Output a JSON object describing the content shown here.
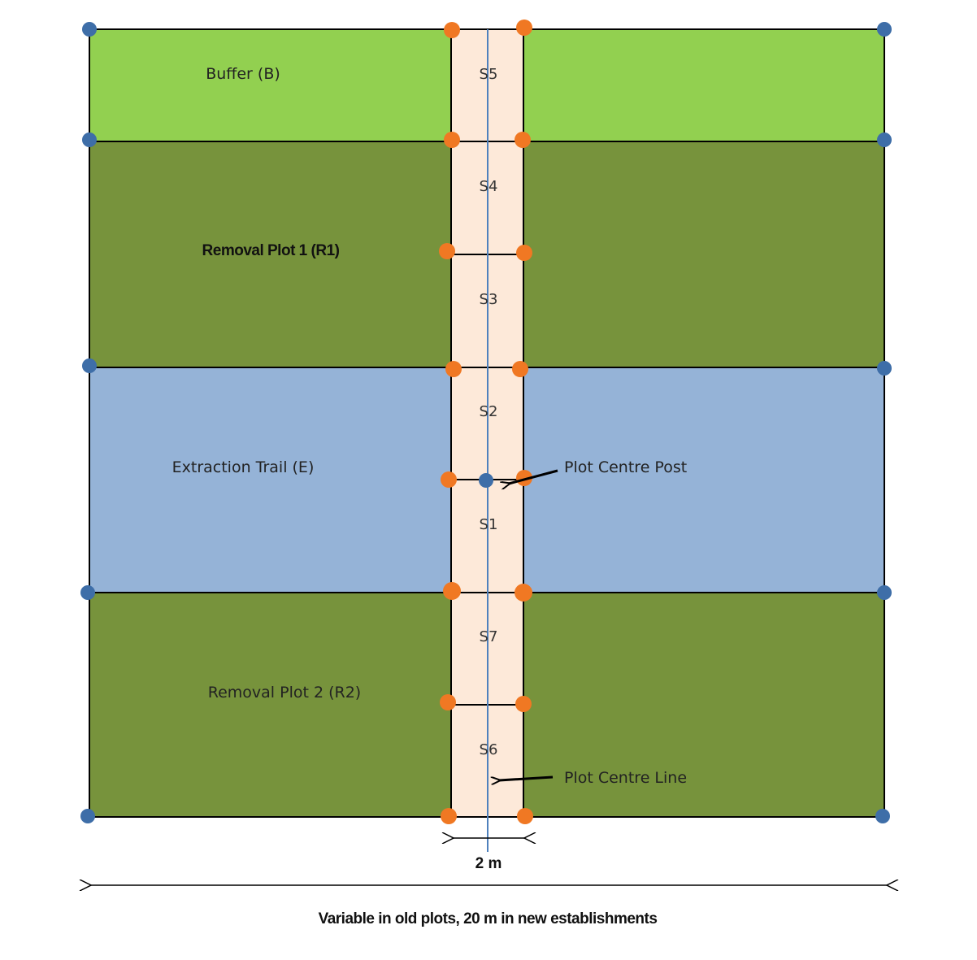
{
  "zones": {
    "buffer": {
      "label": "Buffer (B)",
      "color": "#92d050"
    },
    "removal1": {
      "label": "Removal Plot 1 (R1)",
      "color": "#77933c"
    },
    "extraction": {
      "label": "Extraction Trail (E)",
      "color": "#95b3d7"
    },
    "removal2": {
      "label": "Removal Plot 2 (R2)",
      "color": "#77933c"
    }
  },
  "strip": {
    "color": "#fde9d9",
    "subplots": [
      "S5",
      "S4",
      "S3",
      "S2",
      "S1",
      "S7",
      "S6"
    ]
  },
  "annotations": {
    "centre_post": "Plot Centre Post",
    "centre_line": "Plot Centre Line"
  },
  "dimensions": {
    "strip_width": "2 m",
    "total_width": "Variable in old plots, 20 m in new establishments"
  },
  "colors": {
    "corner_marker": "#3e6ea8",
    "strip_marker": "#f07823",
    "centre_line": "#4f81bd",
    "outline": "#000000"
  }
}
